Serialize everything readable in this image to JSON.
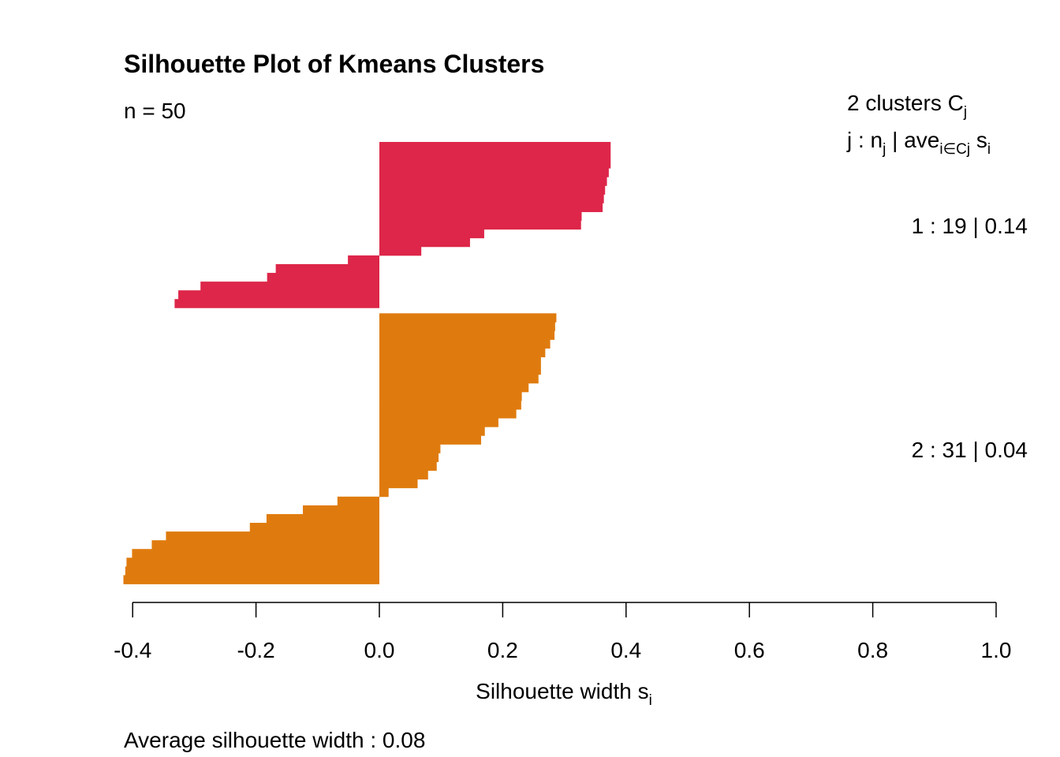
{
  "chart_data": {
    "type": "bar",
    "orientation": "horizontal",
    "title": "Silhouette Plot of Kmeans Clusters",
    "subtitle": "n = 50",
    "xlabel": "Silhouette width",
    "xlabel_sub": "i",
    "xlabel_base": "s",
    "xlim": [
      -0.4,
      1.0
    ],
    "xticks": [
      -0.4,
      -0.2,
      0.0,
      0.2,
      0.4,
      0.6,
      0.8,
      1.0
    ],
    "xtick_labels": [
      "-0.4",
      "-0.2",
      "0.0",
      "0.2",
      "0.4",
      "0.6",
      "0.8",
      "1.0"
    ],
    "legend_header": {
      "line1_prefix": "2  clusters  C",
      "line1_sub": "j",
      "line2_a": "j :  n",
      "line2_a_sub": "j",
      "line2_b": " | ave",
      "line2_b_sub": "i∈Cj",
      "line2_c": "  s",
      "line2_c_sub": "i"
    },
    "clusters": [
      {
        "label": "1 :   19  |  0.14",
        "n": 19,
        "avg": 0.14,
        "color": "#DD2649",
        "values": [
          0.375,
          0.375,
          0.375,
          0.372,
          0.369,
          0.366,
          0.364,
          0.362,
          0.328,
          0.327,
          0.17,
          0.147,
          0.068,
          -0.051,
          -0.168,
          -0.182,
          -0.29,
          -0.326,
          -0.332
        ]
      },
      {
        "label": "2 :   31  |  0.04",
        "n": 31,
        "avg": 0.04,
        "color": "#DF7B0E",
        "values": [
          0.287,
          0.285,
          0.284,
          0.277,
          0.269,
          0.262,
          0.262,
          0.258,
          0.242,
          0.231,
          0.23,
          0.222,
          0.193,
          0.171,
          0.165,
          0.099,
          0.096,
          0.093,
          0.079,
          0.062,
          0.015,
          -0.068,
          -0.124,
          -0.183,
          -0.21,
          -0.346,
          -0.369,
          -0.401,
          -0.41,
          -0.412,
          -0.415
        ]
      }
    ],
    "footer": "Average silhouette width :  0.08"
  }
}
